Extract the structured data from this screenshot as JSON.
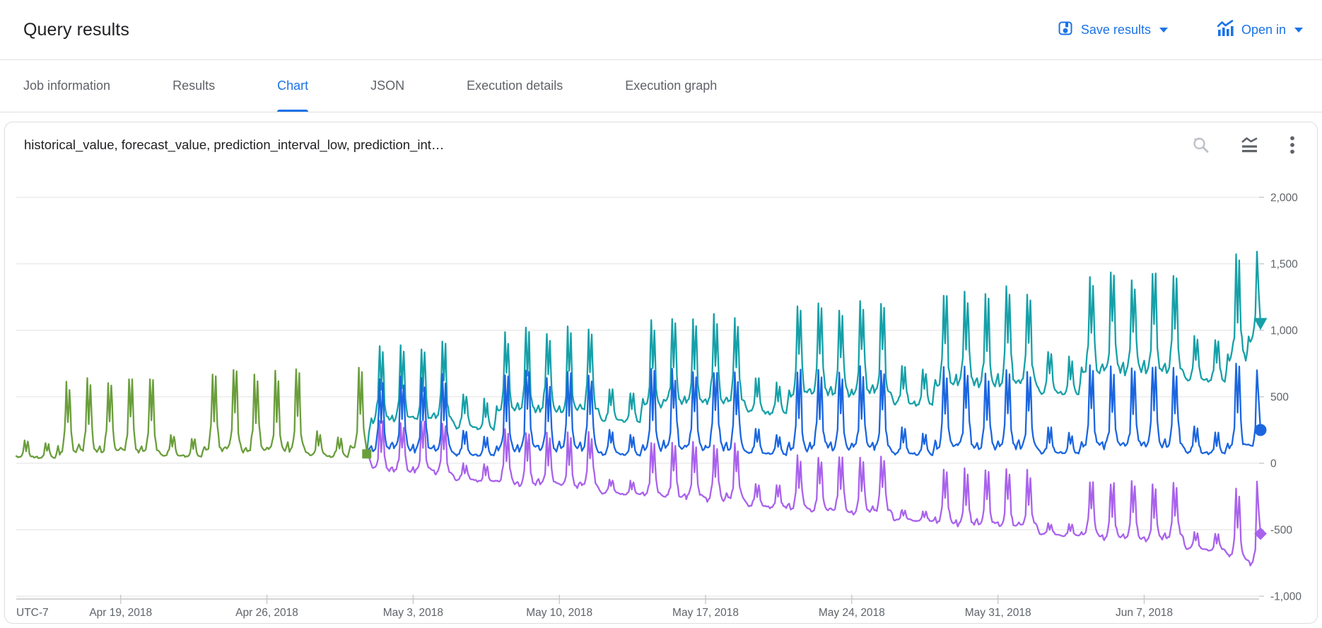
{
  "header": {
    "title": "Query results",
    "save_results_label": "Save results",
    "open_in_label": "Open in"
  },
  "tabs": {
    "items": [
      {
        "label": "Job information",
        "active": false
      },
      {
        "label": "Results",
        "active": false
      },
      {
        "label": "Chart",
        "active": true
      },
      {
        "label": "JSON",
        "active": false
      },
      {
        "label": "Execution details",
        "active": false
      },
      {
        "label": "Execution graph",
        "active": false
      }
    ]
  },
  "chart_card": {
    "title": "historical_value, forecast_value, prediction_interval_low, prediction_int…",
    "toolbar_icons": [
      "reset-zoom",
      "multiline-chart",
      "more-options"
    ]
  },
  "theme": {
    "accent_blue": "#1a73e8",
    "text_dark": "#202124",
    "text_gray": "#5f6368",
    "border_gray": "#dadce0",
    "gridline": "#e6e6e6",
    "axis_line": "#c4c7c5"
  },
  "chart_data": {
    "type": "line",
    "title": "historical_value, forecast_value, prediction_interval_low, prediction_int…",
    "grid": true,
    "legend_position": "none",
    "x_axis": {
      "timezone_label": "UTC-7",
      "start_date": "Apr 14, 2018",
      "end_date": "Jun 12, 2018",
      "days_total": 59.5,
      "ticks": [
        {
          "label": "Apr 19, 2018",
          "day": 5
        },
        {
          "label": "Apr 26, 2018",
          "day": 12
        },
        {
          "label": "May 3, 2018",
          "day": 19
        },
        {
          "label": "May 10, 2018",
          "day": 26
        },
        {
          "label": "May 17, 2018",
          "day": 33
        },
        {
          "label": "May 24, 2018",
          "day": 40
        },
        {
          "label": "May 31, 2018",
          "day": 47
        },
        {
          "label": "Jun 7, 2018",
          "day": 54
        }
      ]
    },
    "y_axis": {
      "range": [
        -1030,
        2230
      ],
      "ticks": [
        {
          "label": "2,000",
          "value": 2000
        },
        {
          "label": "1,500",
          "value": 1500
        },
        {
          "label": "1,000",
          "value": 1000
        },
        {
          "label": "500",
          "value": 500
        },
        {
          "label": "0",
          "value": 0
        },
        {
          "label": "-500",
          "value": -500
        },
        {
          "label": "-1,000",
          "value": -1000
        }
      ]
    },
    "series": [
      {
        "name": "prediction_interval_high",
        "color": "#16a0a8",
        "marker": "triangle-down",
        "start_day": 17,
        "pre_point": [
          16.78,
          70
        ],
        "clip_end": 59.45,
        "end_value": 1050,
        "daily_peaks": [
          880,
          900,
          870,
          910,
          520,
          480,
          980,
          1000,
          970,
          1010,
          1000,
          560,
          530,
          1080,
          1100,
          1070,
          1110,
          1090,
          640,
          610,
          1160,
          1190,
          1150,
          1200,
          1180,
          730,
          700,
          1270,
          1300,
          1260,
          1310,
          1290,
          830,
          800,
          1400,
          1440,
          1390,
          1450,
          1420,
          950,
          920,
          1550,
          1600
        ],
        "daily_troughs": [
          300,
          310,
          305,
          315,
          260,
          250,
          360,
          370,
          365,
          375,
          370,
          310,
          300,
          420,
          430,
          425,
          435,
          430,
          370,
          360,
          490,
          500,
          495,
          505,
          500,
          440,
          430,
          560,
          575,
          570,
          580,
          575,
          515,
          505,
          650,
          665,
          660,
          670,
          665,
          610,
          600,
          760,
          900
        ]
      },
      {
        "name": "prediction_interval_low",
        "color": "#a962ec",
        "marker": "diamond",
        "start_day": 17,
        "pre_point": [
          16.78,
          70
        ],
        "clip_end": 59.45,
        "end_value": -530,
        "daily_peaks": [
          320,
          300,
          310,
          290,
          0,
          -10,
          250,
          230,
          240,
          220,
          230,
          -120,
          -130,
          160,
          150,
          155,
          145,
          150,
          -150,
          -160,
          60,
          50,
          55,
          45,
          50,
          -350,
          -360,
          -40,
          -50,
          -45,
          -55,
          -50,
          -450,
          -460,
          -140,
          -150,
          -145,
          -155,
          -150,
          -520,
          -530,
          -200,
          -150
        ],
        "daily_troughs": [
          -60,
          -80,
          -70,
          -90,
          -130,
          -140,
          -160,
          -180,
          -170,
          -190,
          -180,
          -230,
          -240,
          -260,
          -280,
          -270,
          -290,
          -280,
          -330,
          -340,
          -360,
          -380,
          -370,
          -390,
          -380,
          -430,
          -440,
          -460,
          -480,
          -470,
          -490,
          -480,
          -540,
          -550,
          -560,
          -580,
          -570,
          -590,
          -580,
          -650,
          -660,
          -720,
          -800
        ]
      },
      {
        "name": "forecast_value",
        "color": "#1b66e0",
        "marker": "circle",
        "start_day": 17,
        "pre_point": [
          16.78,
          70
        ],
        "clip_end": 59.45,
        "end_value": 250,
        "daily_peaks": [
          650,
          670,
          640,
          660,
          240,
          200,
          680,
          700,
          660,
          690,
          670,
          250,
          210,
          690,
          710,
          670,
          700,
          680,
          260,
          215,
          700,
          720,
          680,
          710,
          690,
          265,
          220,
          710,
          730,
          690,
          720,
          700,
          270,
          225,
          720,
          740,
          700,
          730,
          710,
          275,
          230,
          740,
          700
        ],
        "daily_troughs": [
          75,
          80,
          75,
          80,
          55,
          50,
          80,
          85,
          80,
          85,
          80,
          60,
          55,
          85,
          90,
          85,
          90,
          85,
          65,
          60,
          90,
          95,
          90,
          95,
          90,
          65,
          60,
          95,
          100,
          95,
          100,
          95,
          70,
          65,
          100,
          105,
          100,
          105,
          100,
          70,
          65,
          105,
          100
        ]
      },
      {
        "name": "historical_value",
        "color": "#6a9e3b",
        "marker": "square",
        "start_day": 0,
        "clip_end": 16.85,
        "end_day": 16.78,
        "end_value": 70,
        "daily_peaks": [
          170,
          150,
          620,
          640,
          600,
          650,
          630,
          210,
          180,
          680,
          700,
          660,
          690,
          700,
          240,
          200,
          710
        ],
        "daily_troughs": [
          40,
          35,
          60,
          70,
          65,
          70,
          65,
          50,
          45,
          75,
          80,
          70,
          75,
          75,
          55,
          45,
          80
        ]
      }
    ]
  }
}
